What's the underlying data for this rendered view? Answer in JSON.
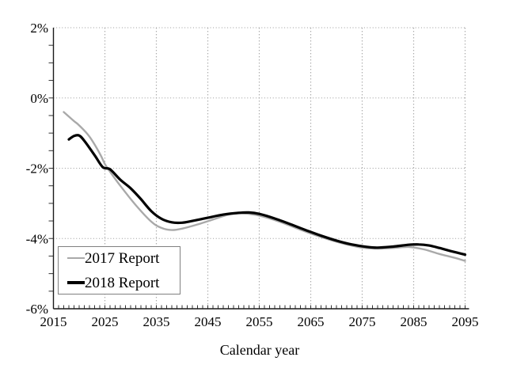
{
  "chart_data": {
    "type": "line",
    "title": "",
    "xlabel": "Calendar year",
    "ylabel": "",
    "xlim": [
      2015,
      2095
    ],
    "ylim": [
      -6,
      2
    ],
    "grid": "dotted",
    "legend_position": "lower-left",
    "x_ticks": [
      {
        "v": 2015,
        "label": "2015"
      },
      {
        "v": 2025,
        "label": "2025"
      },
      {
        "v": 2035,
        "label": "2035"
      },
      {
        "v": 2045,
        "label": "2045"
      },
      {
        "v": 2055,
        "label": "2055"
      },
      {
        "v": 2065,
        "label": "2065"
      },
      {
        "v": 2075,
        "label": "2075"
      },
      {
        "v": 2085,
        "label": "2085"
      },
      {
        "v": 2095,
        "label": "2095"
      }
    ],
    "y_ticks": [
      {
        "v": 2,
        "label": "2%"
      },
      {
        "v": 0,
        "label": "0%"
      },
      {
        "v": -2,
        "label": "-2%"
      },
      {
        "v": -4,
        "label": "-4%"
      },
      {
        "v": -6,
        "label": "-6%"
      }
    ],
    "x_minor_tick_step": 1,
    "y_minor_tick_step": 0.5,
    "colors": {
      "grid_vertical": "#ababab",
      "grid_horizontal": "#999999",
      "axis": "#1a1a1a",
      "tick": "#333333",
      "text": "#000000",
      "legend_border": "#808080",
      "background": "#ffffff"
    },
    "series": [
      {
        "name": "2017 Report",
        "color": "#a9a9a9",
        "stroke_width": 2.4,
        "points": [
          [
            2017,
            -0.4
          ],
          [
            2019,
            -0.66
          ],
          [
            2020,
            -0.78
          ],
          [
            2022,
            -1.1
          ],
          [
            2024,
            -1.58
          ],
          [
            2025,
            -1.88
          ],
          [
            2026,
            -2.1
          ],
          [
            2028,
            -2.5
          ],
          [
            2031,
            -3.05
          ],
          [
            2034,
            -3.52
          ],
          [
            2036,
            -3.7
          ],
          [
            2038,
            -3.76
          ],
          [
            2040,
            -3.72
          ],
          [
            2043,
            -3.6
          ],
          [
            2046,
            -3.46
          ],
          [
            2049,
            -3.32
          ],
          [
            2051,
            -3.28
          ],
          [
            2054,
            -3.32
          ],
          [
            2057,
            -3.43
          ],
          [
            2060,
            -3.58
          ],
          [
            2063,
            -3.75
          ],
          [
            2066,
            -3.91
          ],
          [
            2069,
            -4.05
          ],
          [
            2072,
            -4.17
          ],
          [
            2075,
            -4.26
          ],
          [
            2078,
            -4.29
          ],
          [
            2081,
            -4.27
          ],
          [
            2084,
            -4.24
          ],
          [
            2087,
            -4.31
          ],
          [
            2090,
            -4.44
          ],
          [
            2093,
            -4.55
          ],
          [
            2095,
            -4.64
          ]
        ]
      },
      {
        "name": "2018 Report",
        "color": "#000000",
        "stroke_width": 3.2,
        "points": [
          [
            2018,
            -1.18
          ],
          [
            2019,
            -1.08
          ],
          [
            2020,
            -1.07
          ],
          [
            2021,
            -1.22
          ],
          [
            2023,
            -1.63
          ],
          [
            2024.6,
            -1.97
          ],
          [
            2026,
            -2.03
          ],
          [
            2028,
            -2.33
          ],
          [
            2030,
            -2.57
          ],
          [
            2032,
            -2.88
          ],
          [
            2034,
            -3.22
          ],
          [
            2036,
            -3.44
          ],
          [
            2038,
            -3.54
          ],
          [
            2040,
            -3.55
          ],
          [
            2042,
            -3.5
          ],
          [
            2045,
            -3.41
          ],
          [
            2048,
            -3.32
          ],
          [
            2051,
            -3.27
          ],
          [
            2053,
            -3.26
          ],
          [
            2055,
            -3.3
          ],
          [
            2058,
            -3.43
          ],
          [
            2061,
            -3.59
          ],
          [
            2064,
            -3.76
          ],
          [
            2067,
            -3.92
          ],
          [
            2070,
            -4.06
          ],
          [
            2073,
            -4.17
          ],
          [
            2076,
            -4.24
          ],
          [
            2078,
            -4.26
          ],
          [
            2081,
            -4.23
          ],
          [
            2084,
            -4.18
          ],
          [
            2086,
            -4.17
          ],
          [
            2088,
            -4.2
          ],
          [
            2090,
            -4.27
          ],
          [
            2092,
            -4.35
          ],
          [
            2095,
            -4.46
          ]
        ]
      }
    ]
  }
}
